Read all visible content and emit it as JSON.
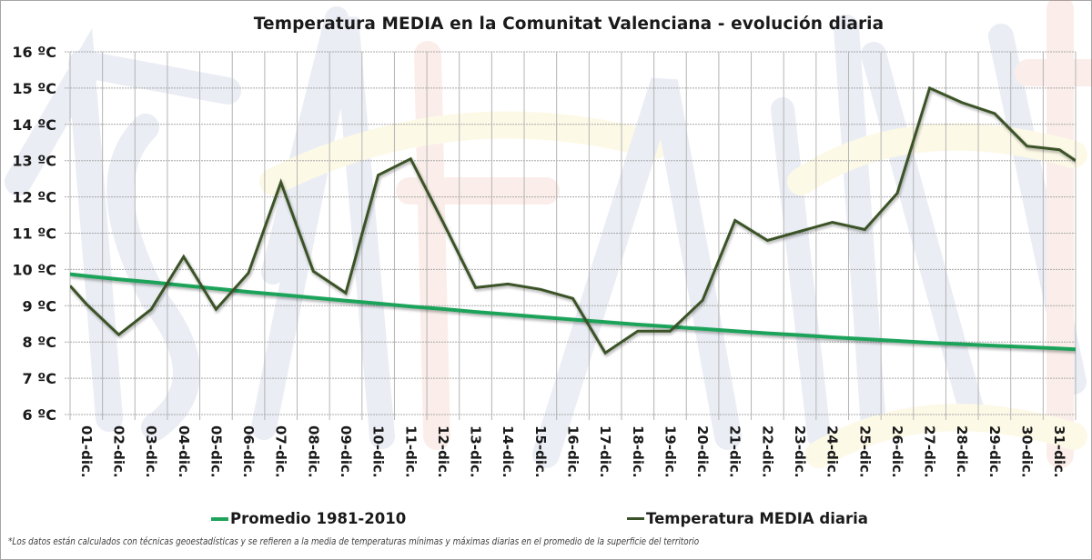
{
  "chart_data": {
    "type": "line",
    "title": "Temperatura MEDIA en la Comunitat Valenciana - evolución diaria",
    "xlabel": "",
    "ylabel": "",
    "ylim": [
      6,
      16
    ],
    "yticks": [
      16,
      15,
      14,
      13,
      12,
      11,
      10,
      9,
      8,
      7,
      6
    ],
    "ytick_suffix": " ºC",
    "grid": true,
    "legend_position": "bottom",
    "categories": [
      "01-dic.",
      "02-dic.",
      "03-dic.",
      "04-dic.",
      "05-dic.",
      "06-dic.",
      "07-dic.",
      "08-dic.",
      "09-dic.",
      "10-dic.",
      "11-dic.",
      "12-dic.",
      "13-dic.",
      "14-dic.",
      "15-dic.",
      "16-dic.",
      "17-dic.",
      "18-dic.",
      "19-dic.",
      "20-dic.",
      "21-dic.",
      "22-dic.",
      "23-dic.",
      "24-dic.",
      "25-dic.",
      "26-dic.",
      "27-dic.",
      "28-dic.",
      "29-dic.",
      "30-dic.",
      "31-dic."
    ],
    "series": [
      {
        "name": "Promedio 1981-2010",
        "color": "#1fa35a",
        "edge_values": [
          9.87,
          7.8
        ],
        "values": [
          9.82,
          9.73,
          9.65,
          9.56,
          9.47,
          9.38,
          9.3,
          9.22,
          9.14,
          9.06,
          8.98,
          8.91,
          8.83,
          8.76,
          8.69,
          8.62,
          8.55,
          8.48,
          8.42,
          8.36,
          8.3,
          8.24,
          8.19,
          8.13,
          8.08,
          8.03,
          7.98,
          7.94,
          7.9,
          7.86,
          7.82
        ]
      },
      {
        "name": "Temperatura MEDIA diaria",
        "color": "#3a5228",
        "edge_values": [
          9.55,
          13.0
        ],
        "values": [
          9.05,
          8.2,
          8.9,
          10.35,
          8.9,
          9.9,
          12.4,
          9.95,
          9.35,
          12.6,
          13.05,
          11.3,
          9.5,
          9.6,
          9.45,
          9.2,
          7.7,
          8.3,
          8.3,
          9.15,
          11.35,
          10.8,
          11.05,
          11.3,
          11.1,
          12.1,
          15.0,
          14.6,
          14.3,
          13.4,
          13.3
        ]
      }
    ]
  },
  "legend": {
    "promedio_label": "Promedio 1981-2010",
    "diaria_label": "Temperatura MEDIA diaria"
  },
  "footnote": "*Los datos están calculados con técnicas geoestadísticas y se refieren a la media de temperaturas mínimas y máximas diarias en el promedio de la superficie del territorio"
}
